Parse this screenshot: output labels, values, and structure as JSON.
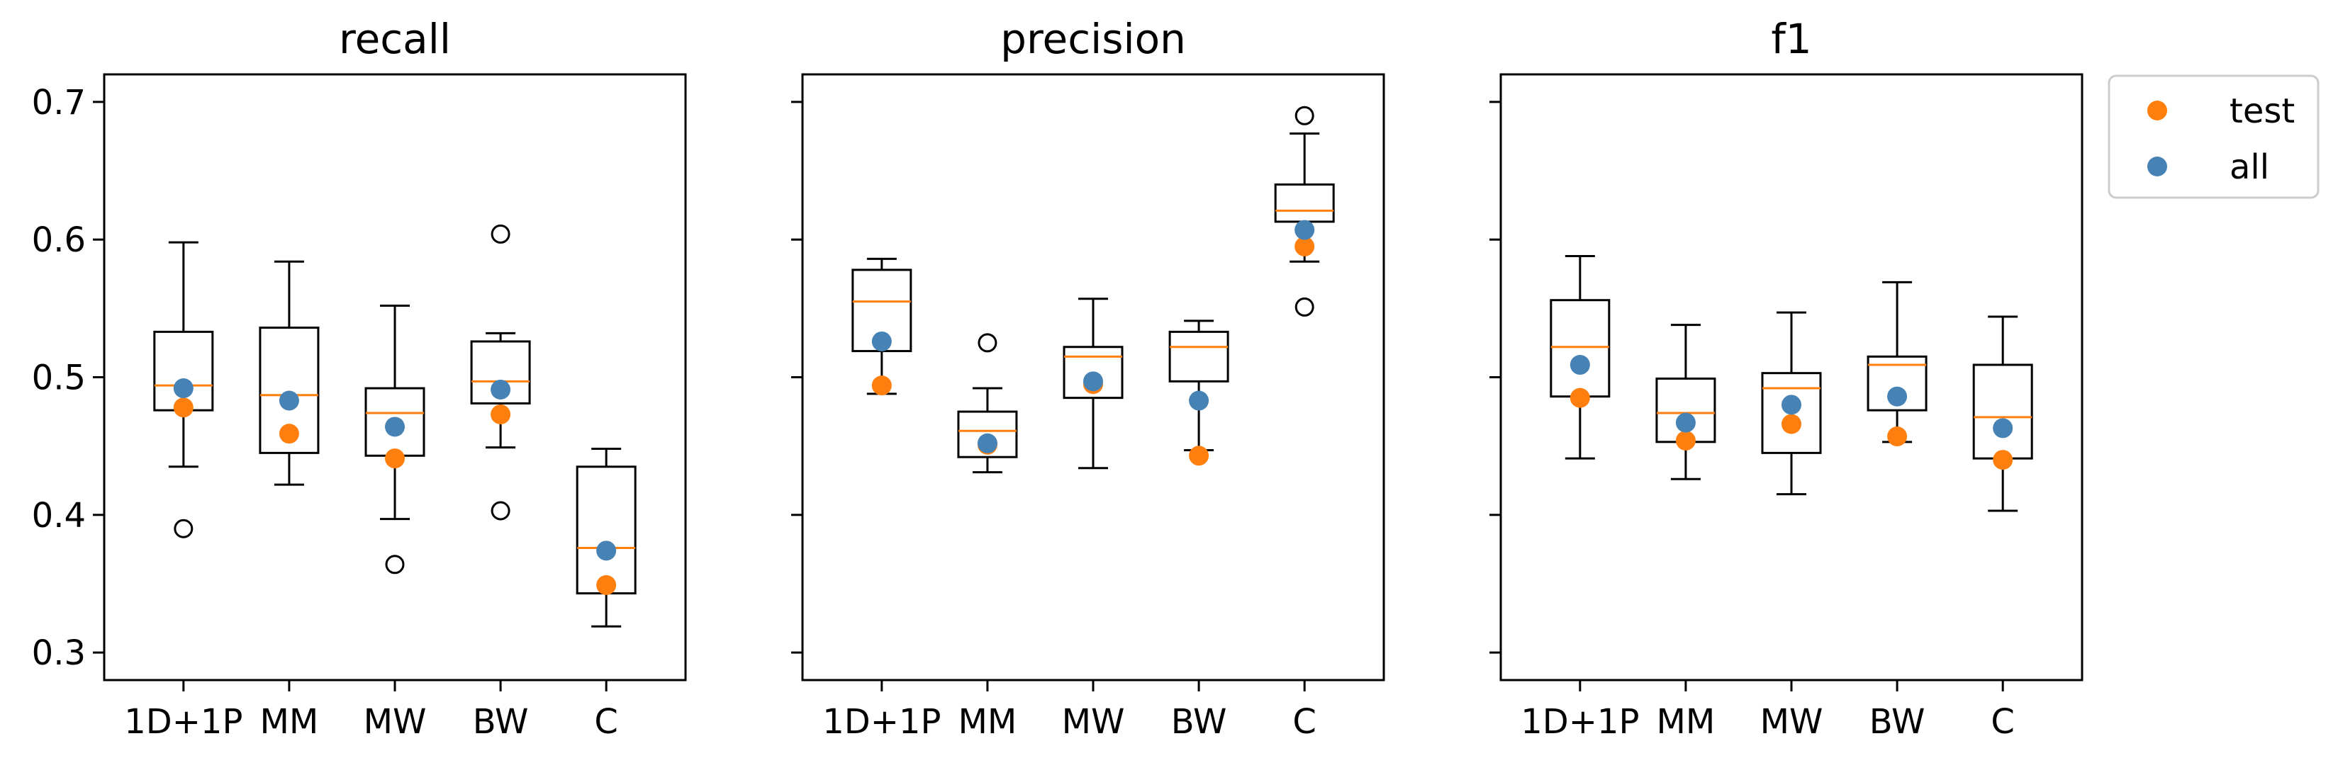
{
  "chart_data": [
    {
      "type": "box",
      "title": "recall",
      "categories": [
        "1D+1P",
        "MM",
        "MW",
        "BW",
        "C"
      ],
      "ylim": [
        0.28,
        0.72
      ],
      "yticks": [
        0.3,
        0.4,
        0.5,
        0.6,
        0.7
      ],
      "ytick_labels": [
        "0.3",
        "0.4",
        "0.5",
        "0.6",
        "0.7"
      ],
      "boxes": [
        {
          "whisker_low": 0.435,
          "q1": 0.476,
          "median": 0.494,
          "q3": 0.533,
          "whisker_high": 0.598,
          "outliers": [
            0.39
          ]
        },
        {
          "whisker_low": 0.422,
          "q1": 0.445,
          "median": 0.487,
          "q3": 0.536,
          "whisker_high": 0.584,
          "outliers": []
        },
        {
          "whisker_low": 0.397,
          "q1": 0.443,
          "median": 0.474,
          "q3": 0.492,
          "whisker_high": 0.552,
          "outliers": [
            0.364
          ]
        },
        {
          "whisker_low": 0.449,
          "q1": 0.481,
          "median": 0.497,
          "q3": 0.526,
          "whisker_high": 0.532,
          "outliers": [
            0.604,
            0.403
          ]
        },
        {
          "whisker_low": 0.319,
          "q1": 0.343,
          "median": 0.376,
          "q3": 0.435,
          "whisker_high": 0.448,
          "outliers": []
        }
      ],
      "series": [
        {
          "name": "test",
          "values": [
            0.478,
            0.459,
            0.441,
            0.473,
            0.349
          ]
        },
        {
          "name": "all",
          "values": [
            0.492,
            0.483,
            0.464,
            0.491,
            0.374
          ]
        }
      ]
    },
    {
      "type": "box",
      "title": "precision",
      "categories": [
        "1D+1P",
        "MM",
        "MW",
        "BW",
        "C"
      ],
      "ylim": [
        0.28,
        0.72
      ],
      "yticks": [
        0.3,
        0.4,
        0.5,
        0.6,
        0.7
      ],
      "ytick_labels": [],
      "boxes": [
        {
          "whisker_low": 0.488,
          "q1": 0.519,
          "median": 0.555,
          "q3": 0.578,
          "whisker_high": 0.586,
          "outliers": []
        },
        {
          "whisker_low": 0.431,
          "q1": 0.442,
          "median": 0.461,
          "q3": 0.475,
          "whisker_high": 0.492,
          "outliers": [
            0.525
          ]
        },
        {
          "whisker_low": 0.434,
          "q1": 0.485,
          "median": 0.515,
          "q3": 0.522,
          "whisker_high": 0.557,
          "outliers": []
        },
        {
          "whisker_low": 0.447,
          "q1": 0.497,
          "median": 0.522,
          "q3": 0.533,
          "whisker_high": 0.541,
          "outliers": []
        },
        {
          "whisker_low": 0.584,
          "q1": 0.613,
          "median": 0.621,
          "q3": 0.64,
          "whisker_high": 0.677,
          "outliers": [
            0.69,
            0.551
          ]
        }
      ],
      "series": [
        {
          "name": "test",
          "values": [
            0.494,
            0.451,
            0.495,
            0.443,
            0.595
          ]
        },
        {
          "name": "all",
          "values": [
            0.526,
            0.452,
            0.497,
            0.483,
            0.607
          ]
        }
      ]
    },
    {
      "type": "box",
      "title": "f1",
      "categories": [
        "1D+1P",
        "MM",
        "MW",
        "BW",
        "C"
      ],
      "ylim": [
        0.28,
        0.72
      ],
      "yticks": [
        0.3,
        0.4,
        0.5,
        0.6,
        0.7
      ],
      "ytick_labels": [],
      "boxes": [
        {
          "whisker_low": 0.441,
          "q1": 0.486,
          "median": 0.522,
          "q3": 0.556,
          "whisker_high": 0.588,
          "outliers": []
        },
        {
          "whisker_low": 0.426,
          "q1": 0.453,
          "median": 0.474,
          "q3": 0.499,
          "whisker_high": 0.538,
          "outliers": []
        },
        {
          "whisker_low": 0.415,
          "q1": 0.445,
          "median": 0.492,
          "q3": 0.503,
          "whisker_high": 0.547,
          "outliers": []
        },
        {
          "whisker_low": 0.453,
          "q1": 0.476,
          "median": 0.509,
          "q3": 0.515,
          "whisker_high": 0.569,
          "outliers": []
        },
        {
          "whisker_low": 0.403,
          "q1": 0.441,
          "median": 0.471,
          "q3": 0.509,
          "whisker_high": 0.544,
          "outliers": []
        }
      ],
      "series": [
        {
          "name": "test",
          "values": [
            0.485,
            0.454,
            0.466,
            0.457,
            0.44
          ]
        },
        {
          "name": "all",
          "values": [
            0.509,
            0.467,
            0.48,
            0.486,
            0.463
          ]
        }
      ]
    }
  ],
  "legend": {
    "placement": "outside-right-top",
    "entries": [
      {
        "label": "test",
        "color": "#ff7f0e"
      },
      {
        "label": "all",
        "color": "#4682b4"
      }
    ]
  },
  "colors": {
    "test": "#ff7f0e",
    "all": "#4682b4",
    "median": "#ff7f0e",
    "box": "#000000"
  }
}
